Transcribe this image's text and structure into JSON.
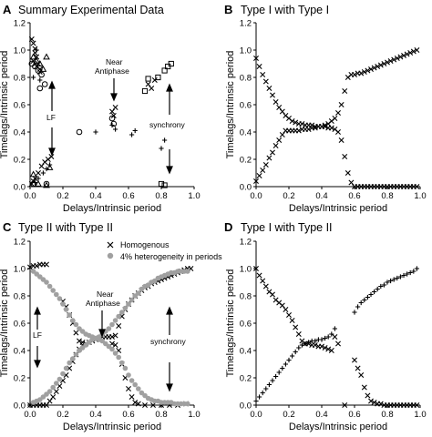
{
  "chart_data": [
    {
      "panel": "A",
      "type": "scatter",
      "title": "Summary Experimental Data",
      "xlabel": "Delays/Intrinsic period",
      "ylabel": "Timelags/Intrinsic period",
      "xlim": [
        0,
        1.0
      ],
      "ylim": [
        0,
        1.2
      ],
      "xticks": [
        "0.0",
        "0.2",
        "0.4",
        "0.6",
        "0.8",
        "1.0"
      ],
      "yticks": [
        "0.0",
        "0.2",
        "0.4",
        "0.6",
        "0.8",
        "1.0",
        "1.2"
      ],
      "annotations": [
        {
          "text": "Near",
          "x": 0.5,
          "y": 1.1
        },
        {
          "text": "Antiphase",
          "x": 0.5,
          "y": 1.04
        },
        {
          "text": "LF",
          "x": 0.11,
          "y": 0.58
        },
        {
          "text": "synchrony",
          "x": 0.86,
          "y": 0.54
        }
      ],
      "series": [
        {
          "marker": "x",
          "x": [
            0.01,
            0.02,
            0.03,
            0.03,
            0.04,
            0.05,
            0.06,
            0.01,
            0.02,
            0.03,
            0.05,
            0.07,
            0.09,
            0.11,
            0.13,
            0.5,
            0.51,
            0.52,
            0.72,
            0.74,
            0.76,
            0.02,
            0.04,
            0.06
          ],
          "y": [
            1.08,
            1.05,
            1.01,
            0.98,
            0.95,
            0.9,
            0.86,
            0.02,
            0.04,
            0.06,
            0.1,
            0.15,
            0.18,
            0.2,
            0.22,
            0.55,
            0.52,
            0.58,
            0.75,
            0.72,
            0.78,
            0.92,
            0.88,
            0.84
          ]
        },
        {
          "marker": "plus",
          "x": [
            0.03,
            0.05,
            0.08,
            0.1,
            0.12,
            0.4,
            0.5,
            0.52,
            0.62,
            0.64,
            0.8,
            0.82,
            0.02,
            0.06,
            0.04
          ],
          "y": [
            0.03,
            0.06,
            0.1,
            0.13,
            0.16,
            0.4,
            0.45,
            0.42,
            0.38,
            0.41,
            0.28,
            0.34,
            0.8,
            0.78,
            1.0
          ]
        },
        {
          "marker": "triangle",
          "x": [
            0.02,
            0.04,
            0.06,
            0.08,
            0.1,
            0.12,
            0.02,
            0.05,
            0.1
          ],
          "y": [
            0.95,
            0.92,
            0.9,
            0.86,
            0.95,
            0.14,
            0.09,
            0.02,
            0.01
          ]
        },
        {
          "marker": "circle",
          "x": [
            0.01,
            0.03,
            0.05,
            0.07,
            0.09,
            0.1,
            0.02,
            0.5,
            0.51,
            0.3,
            0.06
          ],
          "y": [
            0.9,
            0.88,
            0.85,
            0.82,
            0.75,
            0.02,
            0.02,
            0.5,
            0.46,
            0.4,
            0.72
          ]
        },
        {
          "marker": "square",
          "x": [
            0.7,
            0.72,
            0.78,
            0.82,
            0.84,
            0.86,
            0.8,
            0.82
          ],
          "y": [
            0.7,
            0.79,
            0.8,
            0.85,
            0.88,
            0.9,
            0.02,
            0.01
          ]
        }
      ]
    },
    {
      "panel": "B",
      "type": "scatter",
      "title": "Type I with Type I",
      "xlabel": "Delays/Intrinsic period",
      "ylabel": "Timelags/Intrinsic period",
      "xlim": [
        0,
        1.0
      ],
      "ylim": [
        0,
        1.2
      ],
      "xticks": [
        "0.0",
        "0.2",
        "0.4",
        "0.6",
        "0.8",
        "1.0"
      ],
      "yticks": [
        "0.0",
        "0.2",
        "0.4",
        "0.6",
        "0.8",
        "1.0",
        "1.2"
      ],
      "series": [
        {
          "marker": "x",
          "x": [
            0.0,
            0.02,
            0.04,
            0.06,
            0.08,
            0.1,
            0.12,
            0.14,
            0.16,
            0.18,
            0.2,
            0.22,
            0.24,
            0.26,
            0.28,
            0.3,
            0.32,
            0.34,
            0.36,
            0.38,
            0.4,
            0.42,
            0.44,
            0.46,
            0.48,
            0.5,
            0.52,
            0.54,
            0.56,
            0.58,
            0.6,
            0.62,
            0.64,
            0.66,
            0.68,
            0.7,
            0.72,
            0.74,
            0.76,
            0.78,
            0.8,
            0.82,
            0.84,
            0.86,
            0.88,
            0.9,
            0.92,
            0.94,
            0.96,
            0.98
          ],
          "y": [
            0.04,
            0.08,
            0.12,
            0.16,
            0.21,
            0.25,
            0.3,
            0.34,
            0.38,
            0.41,
            0.41,
            0.41,
            0.41,
            0.41,
            0.42,
            0.42,
            0.42,
            0.43,
            0.43,
            0.44,
            0.44,
            0.45,
            0.46,
            0.48,
            0.5,
            0.54,
            0.6,
            0.7,
            0.8,
            0.82,
            0.82,
            0.83,
            0.83,
            0.84,
            0.85,
            0.86,
            0.87,
            0.88,
            0.89,
            0.9,
            0.91,
            0.92,
            0.93,
            0.94,
            0.95,
            0.96,
            0.97,
            0.98,
            0.99,
            1.0
          ]
        },
        {
          "marker": "x",
          "x": [
            0.0,
            0.02,
            0.04,
            0.06,
            0.08,
            0.1,
            0.12,
            0.14,
            0.16,
            0.18,
            0.2,
            0.22,
            0.24,
            0.26,
            0.28,
            0.3,
            0.32,
            0.34,
            0.36,
            0.38,
            0.4,
            0.42,
            0.44,
            0.46,
            0.48,
            0.5,
            0.52,
            0.54,
            0.56,
            0.58,
            0.6,
            0.62,
            0.64,
            0.66,
            0.68,
            0.7,
            0.72,
            0.74,
            0.76,
            0.78,
            0.8,
            0.82,
            0.84,
            0.86,
            0.88,
            0.9,
            0.92,
            0.94,
            0.96,
            0.98
          ],
          "y": [
            0.94,
            0.88,
            0.82,
            0.77,
            0.72,
            0.67,
            0.62,
            0.58,
            0.55,
            0.52,
            0.5,
            0.48,
            0.47,
            0.46,
            0.46,
            0.45,
            0.45,
            0.45,
            0.44,
            0.44,
            0.44,
            0.44,
            0.43,
            0.43,
            0.42,
            0.4,
            0.34,
            0.22,
            0.1,
            0.03,
            0.0,
            0.0,
            0.0,
            0.0,
            0.0,
            0.0,
            0.0,
            0.0,
            0.0,
            0.0,
            0.0,
            0.0,
            0.0,
            0.0,
            0.0,
            0.0,
            0.0,
            0.0,
            0.0,
            0.0
          ]
        }
      ]
    },
    {
      "panel": "C",
      "type": "scatter",
      "title": "Type II with Type II",
      "xlabel": "Delays/Intrinsic period",
      "ylabel": "Timelags/Intrinsic period",
      "xlim": [
        0,
        1.0
      ],
      "ylim": [
        0,
        1.2
      ],
      "xticks": [
        "0.0",
        "0.2",
        "0.4",
        "0.6",
        "0.8",
        "1.0"
      ],
      "yticks": [
        "0.0",
        "0.2",
        "0.4",
        "0.6",
        "0.8",
        "1.0",
        "1.2"
      ],
      "legend": {
        "position": "top-right"
      },
      "annotations": [
        {
          "text": "Near",
          "x": 0.44,
          "y": 0.63
        },
        {
          "text": "Antiphase",
          "x": 0.44,
          "y": 0.58
        },
        {
          "text": "LF",
          "x": 0.08,
          "y": 0.52
        },
        {
          "text": "synchrony",
          "x": 0.88,
          "y": 0.5
        }
      ],
      "series": [
        {
          "name": "Homogenous",
          "marker": "x",
          "color": "#000000",
          "x": [
            0.0,
            0.02,
            0.04,
            0.06,
            0.08,
            0.1,
            0.0,
            0.02,
            0.04,
            0.06,
            0.08,
            0.1,
            0.12,
            0.14,
            0.16,
            0.18,
            0.2,
            0.22,
            0.24,
            0.26,
            0.28,
            0.3,
            0.32,
            0.34,
            0.36,
            0.38,
            0.4,
            0.42,
            0.44,
            0.46,
            0.48,
            0.5,
            0.52,
            0.54,
            0.56,
            0.58,
            0.6,
            0.62,
            0.64,
            0.66,
            0.68,
            0.7,
            0.72,
            0.74,
            0.76,
            0.78,
            0.8,
            0.82,
            0.84,
            0.86,
            0.88,
            0.9,
            0.92,
            0.94,
            0.96,
            0.98,
            0.2,
            0.22,
            0.24,
            0.26,
            0.28,
            0.3,
            0.32,
            0.34,
            0.5,
            0.52,
            0.54,
            0.56,
            0.58,
            0.6,
            0.62,
            0.64,
            0.66,
            0.7,
            0.75,
            0.8,
            0.85,
            0.9,
            0.95
          ],
          "y": [
            1.01,
            1.02,
            1.02,
            1.03,
            1.03,
            1.03,
            0.0,
            0.0,
            0.0,
            0.0,
            0.0,
            0.0,
            0.03,
            0.06,
            0.1,
            0.14,
            0.18,
            0.22,
            0.27,
            0.32,
            0.37,
            0.41,
            0.44,
            0.45,
            0.46,
            0.47,
            0.48,
            0.49,
            0.5,
            0.5,
            0.5,
            0.5,
            0.51,
            0.58,
            0.65,
            0.7,
            0.74,
            0.77,
            0.8,
            0.82,
            0.84,
            0.86,
            0.87,
            0.89,
            0.9,
            0.91,
            0.92,
            0.93,
            0.94,
            0.95,
            0.96,
            0.97,
            0.98,
            0.99,
            1.0,
            1.0,
            0.76,
            0.72,
            0.66,
            0.6,
            0.53,
            0.47,
            0.46,
            0.45,
            0.45,
            0.44,
            0.4,
            0.3,
            0.2,
            0.12,
            0.06,
            0.02,
            0.01,
            0.0,
            0.0,
            0.0,
            0.0,
            0.0,
            0.01
          ]
        },
        {
          "name": "4% heterogeneity in periods",
          "marker": "circle",
          "color": "#a0a0a0",
          "x": [
            0.02,
            0.04,
            0.06,
            0.08,
            0.1,
            0.12,
            0.14,
            0.16,
            0.18,
            0.2,
            0.22,
            0.24,
            0.26,
            0.28,
            0.3,
            0.32,
            0.34,
            0.36,
            0.38,
            0.4,
            0.42,
            0.44,
            0.46,
            0.48,
            0.5,
            0.52,
            0.54,
            0.56,
            0.58,
            0.6,
            0.62,
            0.64,
            0.66,
            0.68,
            0.7,
            0.72,
            0.74,
            0.76,
            0.78,
            0.8,
            0.82,
            0.84,
            0.86,
            0.88,
            0.9,
            0.92,
            0.94,
            0.96,
            0.02,
            0.04,
            0.06,
            0.08,
            0.1,
            0.12,
            0.14,
            0.16,
            0.18,
            0.2,
            0.22,
            0.24,
            0.26,
            0.28,
            0.3,
            0.32,
            0.34,
            0.36,
            0.38,
            0.4,
            0.42,
            0.44,
            0.46,
            0.48,
            0.5,
            0.52,
            0.54,
            0.56,
            0.58,
            0.6,
            0.62,
            0.64,
            0.66,
            0.68,
            0.7,
            0.72,
            0.74,
            0.76,
            0.78,
            0.8,
            0.82,
            0.84,
            0.86,
            0.88,
            0.9,
            0.92,
            0.94,
            0.96
          ],
          "y": [
            0.98,
            0.96,
            0.94,
            0.92,
            0.9,
            0.87,
            0.84,
            0.81,
            0.78,
            0.74,
            0.7,
            0.66,
            0.62,
            0.59,
            0.56,
            0.54,
            0.52,
            0.51,
            0.5,
            0.49,
            0.48,
            0.47,
            0.45,
            0.43,
            0.41,
            0.38,
            0.35,
            0.31,
            0.27,
            0.22,
            0.18,
            0.15,
            0.12,
            0.09,
            0.07,
            0.05,
            0.04,
            0.03,
            0.03,
            0.02,
            0.02,
            0.02,
            0.02,
            0.01,
            0.01,
            0.01,
            0.01,
            0.01,
            0.02,
            0.03,
            0.04,
            0.06,
            0.08,
            0.1,
            0.13,
            0.16,
            0.19,
            0.23,
            0.27,
            0.31,
            0.34,
            0.37,
            0.4,
            0.42,
            0.44,
            0.46,
            0.48,
            0.49,
            0.5,
            0.52,
            0.54,
            0.56,
            0.59,
            0.62,
            0.65,
            0.68,
            0.71,
            0.74,
            0.77,
            0.8,
            0.82,
            0.85,
            0.87,
            0.88,
            0.9,
            0.91,
            0.93,
            0.94,
            0.95,
            0.96,
            0.97,
            0.97,
            0.98,
            0.98,
            0.98,
            0.98
          ]
        }
      ]
    },
    {
      "panel": "D",
      "type": "scatter",
      "title": "Type I with Type II",
      "xlabel": "Delays/Intrinsic period",
      "ylabel": "Timelags/Intrinsic period",
      "xlim": [
        0,
        1.0
      ],
      "ylim": [
        0,
        1.2
      ],
      "xticks": [
        "0.0",
        "0.2",
        "0.4",
        "0.6",
        "0.8",
        "1.0"
      ],
      "yticks": [
        "0.0",
        "0.2",
        "0.4",
        "0.6",
        "0.8",
        "1.0",
        "1.2"
      ],
      "series": [
        {
          "marker": "x",
          "x": [
            0.0,
            0.02,
            0.04,
            0.06,
            0.08,
            0.1,
            0.12,
            0.14,
            0.16,
            0.18,
            0.2,
            0.22,
            0.24,
            0.26,
            0.28,
            0.3,
            0.32,
            0.34,
            0.36,
            0.38,
            0.4,
            0.42,
            0.44,
            0.46,
            0.48,
            0.5,
            0.54,
            0.6,
            0.62,
            0.64,
            0.66,
            0.68,
            0.7,
            0.72,
            0.74,
            0.76,
            0.78,
            0.8,
            0.82,
            0.84,
            0.86,
            0.88,
            0.9,
            0.92,
            0.94,
            0.96,
            0.98
          ],
          "y": [
            1.0,
            0.95,
            0.91,
            0.87,
            0.83,
            0.81,
            0.77,
            0.75,
            0.73,
            0.7,
            0.66,
            0.62,
            0.57,
            0.52,
            0.47,
            0.45,
            0.45,
            0.44,
            0.44,
            0.43,
            0.43,
            0.42,
            0.41,
            0.4,
            0.5,
            0.45,
            0.0,
            0.33,
            0.27,
            0.22,
            0.13,
            0.07,
            0.03,
            0.02,
            0.01,
            0.01,
            0.0,
            0.0,
            0.0,
            0.0,
            0.0,
            0.0,
            0.0,
            0.0,
            0.0,
            0.0,
            0.0
          ]
        },
        {
          "marker": "plus",
          "x": [
            0.0,
            0.02,
            0.04,
            0.06,
            0.08,
            0.1,
            0.12,
            0.14,
            0.16,
            0.18,
            0.2,
            0.22,
            0.24,
            0.26,
            0.28,
            0.3,
            0.32,
            0.34,
            0.36,
            0.38,
            0.4,
            0.42,
            0.44,
            0.46,
            0.48,
            0.6,
            0.62,
            0.64,
            0.66,
            0.68,
            0.7,
            0.72,
            0.74,
            0.76,
            0.78,
            0.8,
            0.82,
            0.84,
            0.86,
            0.88,
            0.9,
            0.92,
            0.94,
            0.96,
            0.98
          ],
          "y": [
            0.03,
            0.06,
            0.09,
            0.12,
            0.15,
            0.18,
            0.21,
            0.24,
            0.27,
            0.3,
            0.33,
            0.36,
            0.39,
            0.42,
            0.44,
            0.45,
            0.46,
            0.47,
            0.47,
            0.48,
            0.48,
            0.49,
            0.5,
            0.52,
            0.56,
            0.68,
            0.72,
            0.75,
            0.77,
            0.79,
            0.81,
            0.83,
            0.85,
            0.87,
            0.88,
            0.9,
            0.91,
            0.92,
            0.93,
            0.94,
            0.95,
            0.96,
            0.97,
            0.98,
            1.0
          ]
        }
      ]
    }
  ]
}
